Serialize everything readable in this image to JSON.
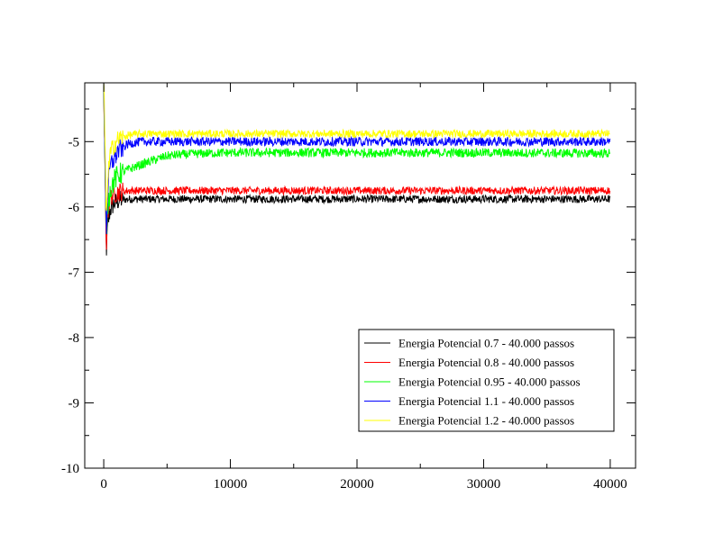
{
  "chart_data": {
    "type": "line",
    "title": "",
    "xlabel": "",
    "ylabel": "",
    "xlim": [
      -1500,
      42000
    ],
    "ylim": [
      -10,
      -4.1
    ],
    "x_ticks": [
      0,
      10000,
      20000,
      30000,
      40000
    ],
    "x_tick_labels": [
      "0",
      "10000",
      "20000",
      "30000",
      "40000"
    ],
    "y_ticks": [
      -10,
      -9,
      -8,
      -7,
      -6,
      -5
    ],
    "y_tick_labels": [
      "-10",
      "-9",
      "-8",
      "-7",
      "-6",
      "-5"
    ],
    "grid": false,
    "legend_position": "bottom-right",
    "series": [
      {
        "name": "Energia Potencial 0.7 - 40.000 passos",
        "color": "#000000",
        "x": [
          0,
          100,
          200,
          300,
          500,
          800,
          1200,
          2000,
          3000,
          5000,
          10000,
          20000,
          30000,
          40000
        ],
        "y": [
          -4.2,
          -5.4,
          -6.7,
          -6.3,
          -6.05,
          -5.95,
          -5.9,
          -5.88,
          -5.88,
          -5.88,
          -5.88,
          -5.88,
          -5.88,
          -5.88
        ],
        "noise": 0.06
      },
      {
        "name": "Energia Potencial 0.8 - 40.000 passos",
        "color": "#ff0000",
        "x": [
          0,
          100,
          200,
          300,
          500,
          800,
          1200,
          2000,
          3000,
          5000,
          10000,
          20000,
          30000,
          40000
        ],
        "y": [
          -4.3,
          -5.5,
          -6.6,
          -6.1,
          -5.85,
          -5.8,
          -5.77,
          -5.75,
          -5.75,
          -5.75,
          -5.75,
          -5.75,
          -5.75,
          -5.75
        ],
        "noise": 0.06
      },
      {
        "name": "Energia Potencial 0.95 - 40.000 passos",
        "color": "#00ff00",
        "x": [
          0,
          100,
          200,
          300,
          500,
          800,
          1200,
          2000,
          3000,
          4000,
          5000,
          6000,
          8000,
          10000,
          20000,
          30000,
          40000
        ],
        "y": [
          -4.2,
          -5.5,
          -6.5,
          -6.0,
          -5.75,
          -5.6,
          -5.5,
          -5.42,
          -5.35,
          -5.28,
          -5.22,
          -5.2,
          -5.18,
          -5.17,
          -5.17,
          -5.17,
          -5.18
        ],
        "noise": 0.07
      },
      {
        "name": "Energia Potencial 1.1 - 40.000 passos",
        "color": "#0000ff",
        "x": [
          0,
          100,
          200,
          300,
          500,
          800,
          1200,
          2000,
          3000,
          5000,
          10000,
          20000,
          30000,
          40000
        ],
        "y": [
          -4.15,
          -5.3,
          -6.4,
          -5.8,
          -5.4,
          -5.25,
          -5.12,
          -5.03,
          -5.0,
          -5.0,
          -5.0,
          -5.0,
          -5.0,
          -5.0
        ],
        "noise": 0.07
      },
      {
        "name": "Energia Potencial 1.2 - 40.000 passos",
        "color": "#ffff00",
        "x": [
          0,
          100,
          200,
          300,
          500,
          800,
          1200,
          2000,
          3000,
          5000,
          10000,
          20000,
          30000,
          40000
        ],
        "y": [
          -4.1,
          -5.0,
          -6.3,
          -5.6,
          -5.2,
          -5.05,
          -4.95,
          -4.9,
          -4.88,
          -4.88,
          -4.88,
          -4.88,
          -4.88,
          -4.88
        ],
        "noise": 0.06
      }
    ]
  }
}
